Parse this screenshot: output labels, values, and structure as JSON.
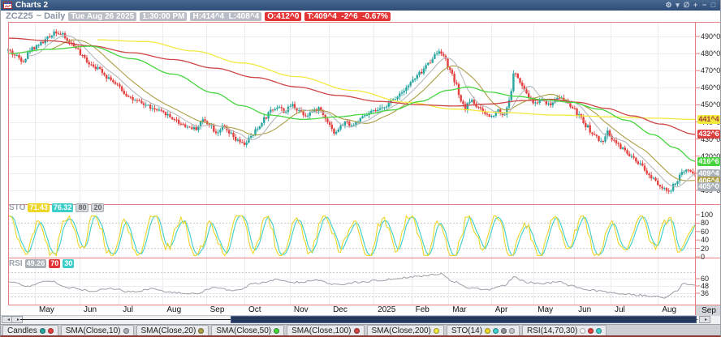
{
  "window": {
    "title": "Charts 2"
  },
  "icons": {
    "gear": "⚙",
    "dropdown": "▾",
    "draw": "∅",
    "pan": "+",
    "minimize": "−",
    "maximize": "□",
    "scroll_left": "◂",
    "scroll_right": "▸",
    "scroll_next": "▸"
  },
  "header": {
    "symbol": "ZCZ25",
    "timeframe": "~ Daily",
    "date": "Tue Aug 26 2025",
    "time": "1:30:00 PM",
    "high_low": "H:414^4  L:408^4",
    "open": "O:412^0",
    "last": "T:409^4  -2^6  -0.67%"
  },
  "price_axis": {
    "tick_labels": [
      "490^0",
      "480^0",
      "470^0",
      "460^0",
      "450^0",
      "440^0",
      "430^0",
      "420^0",
      "410^0",
      "400^0"
    ],
    "badges": [
      {
        "name": "sma200",
        "label": "441^4",
        "price": 441.5,
        "bg": "#f2e93e",
        "fg": "#a33c3c"
      },
      {
        "name": "sma100",
        "label": "432^6",
        "price": 432.75,
        "bg": "#d84040",
        "fg": "#ffffff"
      },
      {
        "name": "sma50",
        "label": "416^6",
        "price": 416.75,
        "bg": "#46d53e",
        "fg": "#ffffff"
      },
      {
        "name": "last-price",
        "label": "409^4",
        "price": 409.5,
        "bg": "#aab0b8",
        "fg": "#ffffff"
      },
      {
        "name": "sma20",
        "label": "406^4",
        "price": 406.5,
        "bg": "#ac9e44",
        "fg": "#ffffff"
      },
      {
        "name": "sma10",
        "label": "405^0",
        "price": 405.0,
        "bg": "#aab0b8",
        "fg": "#ffffff"
      }
    ]
  },
  "sto": {
    "label": "STO",
    "k": "71.43",
    "d": "76.32",
    "upper": "80",
    "lower": "20"
  },
  "rsi": {
    "label": "RSI",
    "value": "49.26",
    "upper": "70",
    "lower": "30"
  },
  "time_axis": {
    "corner": "Sep"
  },
  "legend": {
    "tabs": [
      {
        "label": "Candles",
        "dots": [
          "#27a5a0",
          "#e34040"
        ]
      },
      {
        "label": "SMA(Close,10)",
        "dots": [
          "#aab0b8"
        ]
      },
      {
        "label": "SMA(Close,20)",
        "dots": [
          "#ac9e44"
        ]
      },
      {
        "label": "SMA(Close,50)",
        "dots": [
          "#46d53e"
        ]
      },
      {
        "label": "SMA(Close,100)",
        "dots": [
          "#cf4545"
        ]
      },
      {
        "label": "SMA(Close,200)",
        "dots": [
          "#f2e93e"
        ]
      },
      {
        "label": "STO(14)",
        "dots": [
          "#edd628",
          "#3ccfca",
          "#8b8f94",
          "#c4c8cc"
        ]
      },
      {
        "label": "RSI(14,70,30)",
        "dots": [
          "#ffffff",
          "#e34040",
          "#3ccfca"
        ]
      }
    ]
  },
  "chart_data": {
    "type": "candlestick",
    "symbol": "ZCZ25",
    "interval": "Daily",
    "bars": 315,
    "ylim": [
      397,
      497
    ],
    "price_ticks": [
      490,
      480,
      470,
      460,
      450,
      440,
      430,
      420,
      410,
      400
    ],
    "up_color": "#27a5a0",
    "down_color": "#e34040",
    "last_close": 409.5,
    "months": [
      {
        "label": "May",
        "t": 0.039
      },
      {
        "label": "Jun",
        "t": 0.104
      },
      {
        "label": "Jul",
        "t": 0.161
      },
      {
        "label": "Aug",
        "t": 0.225
      },
      {
        "label": "Sep",
        "t": 0.288
      },
      {
        "label": "Oct",
        "t": 0.344
      },
      {
        "label": "Nov",
        "t": 0.41
      },
      {
        "label": "Dec",
        "t": 0.467
      },
      {
        "label": "2025",
        "t": 0.532
      },
      {
        "label": "Feb",
        "t": 0.587
      },
      {
        "label": "Mar",
        "t": 0.641
      },
      {
        "label": "Apr",
        "t": 0.703
      },
      {
        "label": "May",
        "t": 0.765
      },
      {
        "label": "Jun",
        "t": 0.824
      },
      {
        "label": "Jul",
        "t": 0.877
      },
      {
        "label": "Aug",
        "t": 0.946
      }
    ],
    "price_close_anchors": [
      [
        0.0,
        482
      ],
      [
        0.01,
        479
      ],
      [
        0.022,
        476
      ],
      [
        0.034,
        483
      ],
      [
        0.048,
        486
      ],
      [
        0.058,
        489
      ],
      [
        0.068,
        493
      ],
      [
        0.078,
        491
      ],
      [
        0.088,
        487
      ],
      [
        0.098,
        484
      ],
      [
        0.108,
        478
      ],
      [
        0.12,
        474
      ],
      [
        0.132,
        471
      ],
      [
        0.146,
        466
      ],
      [
        0.16,
        461
      ],
      [
        0.172,
        456
      ],
      [
        0.186,
        452
      ],
      [
        0.2,
        450
      ],
      [
        0.214,
        447
      ],
      [
        0.228,
        445
      ],
      [
        0.24,
        442
      ],
      [
        0.252,
        439
      ],
      [
        0.263,
        437
      ],
      [
        0.273,
        436
      ],
      [
        0.283,
        441
      ],
      [
        0.293,
        439
      ],
      [
        0.303,
        434
      ],
      [
        0.313,
        437
      ],
      [
        0.323,
        433
      ],
      [
        0.333,
        429
      ],
      [
        0.343,
        427
      ],
      [
        0.353,
        431
      ],
      [
        0.363,
        436
      ],
      [
        0.373,
        442
      ],
      [
        0.383,
        447
      ],
      [
        0.393,
        449
      ],
      [
        0.403,
        446
      ],
      [
        0.413,
        450
      ],
      [
        0.423,
        447
      ],
      [
        0.433,
        444
      ],
      [
        0.443,
        446
      ],
      [
        0.453,
        448
      ],
      [
        0.461,
        443
      ],
      [
        0.469,
        438
      ],
      [
        0.476,
        433
      ],
      [
        0.483,
        437
      ],
      [
        0.491,
        440
      ],
      [
        0.501,
        438
      ],
      [
        0.511,
        441
      ],
      [
        0.521,
        444
      ],
      [
        0.531,
        446
      ],
      [
        0.541,
        447
      ],
      [
        0.551,
        450
      ],
      [
        0.561,
        453
      ],
      [
        0.571,
        457
      ],
      [
        0.581,
        461
      ],
      [
        0.591,
        465
      ],
      [
        0.601,
        469
      ],
      [
        0.611,
        474
      ],
      [
        0.621,
        479
      ],
      [
        0.628,
        482
      ],
      [
        0.636,
        477
      ],
      [
        0.643,
        470
      ],
      [
        0.651,
        463
      ],
      [
        0.658,
        453
      ],
      [
        0.665,
        448
      ],
      [
        0.674,
        453
      ],
      [
        0.683,
        449
      ],
      [
        0.693,
        445
      ],
      [
        0.703,
        443
      ],
      [
        0.712,
        447
      ],
      [
        0.722,
        444
      ],
      [
        0.729,
        452
      ],
      [
        0.737,
        469
      ],
      [
        0.748,
        461
      ],
      [
        0.757,
        455
      ],
      [
        0.766,
        451
      ],
      [
        0.777,
        453
      ],
      [
        0.789,
        450
      ],
      [
        0.8,
        455
      ],
      [
        0.812,
        452
      ],
      [
        0.822,
        448
      ],
      [
        0.83,
        444
      ],
      [
        0.841,
        438
      ],
      [
        0.853,
        432
      ],
      [
        0.864,
        428
      ],
      [
        0.872,
        434
      ],
      [
        0.883,
        429
      ],
      [
        0.895,
        424
      ],
      [
        0.906,
        420
      ],
      [
        0.918,
        415
      ],
      [
        0.936,
        408
      ],
      [
        0.953,
        402
      ],
      [
        0.962,
        398.5
      ],
      [
        0.971,
        404
      ],
      [
        0.981,
        410
      ],
      [
        0.989,
        413
      ],
      [
        1.0,
        409.5
      ]
    ],
    "sma": {
      "sma10": {
        "window": 10,
        "color": "#b4b8bc",
        "last": 405.0
      },
      "sma20": {
        "window": 20,
        "color": "#ac9e44",
        "last": 406.5
      },
      "sma50": {
        "color": "#46d53e",
        "last": 416.75,
        "anchors": [
          [
            0,
            480
          ],
          [
            0.06,
            482.5
          ],
          [
            0.12,
            484.3
          ],
          [
            0.18,
            477
          ],
          [
            0.24,
            468
          ],
          [
            0.3,
            457
          ],
          [
            0.34,
            449.5
          ],
          [
            0.38,
            444
          ],
          [
            0.43,
            441.5
          ],
          [
            0.48,
            443
          ],
          [
            0.52,
            444.5
          ],
          [
            0.56,
            447
          ],
          [
            0.6,
            452
          ],
          [
            0.64,
            458.5
          ],
          [
            0.67,
            460.5
          ],
          [
            0.7,
            457.5
          ],
          [
            0.74,
            455
          ],
          [
            0.78,
            453
          ],
          [
            0.82,
            451.5
          ],
          [
            0.86,
            447.5
          ],
          [
            0.9,
            441
          ],
          [
            0.94,
            432.5
          ],
          [
            0.97,
            425
          ],
          [
            1.0,
            417
          ]
        ]
      },
      "sma100": {
        "color": "#cf4545",
        "last": 432.75,
        "anchors": [
          [
            0,
            489
          ],
          [
            0.06,
            487.5
          ],
          [
            0.12,
            484.5
          ],
          [
            0.18,
            480.5
          ],
          [
            0.24,
            476.5
          ],
          [
            0.3,
            471.5
          ],
          [
            0.36,
            466
          ],
          [
            0.42,
            460.5
          ],
          [
            0.48,
            455.5
          ],
          [
            0.54,
            452
          ],
          [
            0.6,
            450
          ],
          [
            0.65,
            449.3
          ],
          [
            0.7,
            450.5
          ],
          [
            0.75,
            452.5
          ],
          [
            0.79,
            453.3
          ],
          [
            0.83,
            451.5
          ],
          [
            0.87,
            448
          ],
          [
            0.91,
            443.5
          ],
          [
            0.95,
            438.8
          ],
          [
            1.0,
            432.8
          ]
        ]
      },
      "sma200": {
        "color": "#f2e93e",
        "last": 441.5,
        "anchors": [
          [
            0.13,
            488
          ],
          [
            0.2,
            487
          ],
          [
            0.27,
            481.5
          ],
          [
            0.34,
            474.5
          ],
          [
            0.42,
            466.5
          ],
          [
            0.5,
            458.5
          ],
          [
            0.58,
            451.5
          ],
          [
            0.65,
            447.5
          ],
          [
            0.72,
            445.5
          ],
          [
            0.8,
            444
          ],
          [
            0.88,
            443
          ],
          [
            0.94,
            442.2
          ],
          [
            1.0,
            441.5
          ]
        ]
      }
    },
    "sto_panel": {
      "range": [
        0,
        100
      ],
      "ticks": [
        100,
        80,
        60,
        40,
        20,
        0
      ],
      "thresholds": [
        80,
        20
      ],
      "k_last": 71.43,
      "d_last": 76.32,
      "k_color": "#edd628",
      "d_color": "#3ccfca"
    },
    "rsi_panel": {
      "ticks": [
        60,
        48,
        36
      ],
      "thresholds": [
        70,
        30
      ],
      "last": 49.26,
      "color": "#9aa0a6",
      "anchors": [
        [
          0,
          55
        ],
        [
          0.03,
          48
        ],
        [
          0.06,
          57
        ],
        [
          0.09,
          45
        ],
        [
          0.12,
          40
        ],
        [
          0.15,
          44
        ],
        [
          0.18,
          38
        ],
        [
          0.21,
          43
        ],
        [
          0.24,
          37
        ],
        [
          0.27,
          35
        ],
        [
          0.3,
          45
        ],
        [
          0.33,
          40
        ],
        [
          0.36,
          52
        ],
        [
          0.39,
          58
        ],
        [
          0.42,
          54
        ],
        [
          0.45,
          57
        ],
        [
          0.48,
          50
        ],
        [
          0.51,
          54
        ],
        [
          0.54,
          57
        ],
        [
          0.57,
          61
        ],
        [
          0.6,
          64
        ],
        [
          0.628,
          68
        ],
        [
          0.65,
          55
        ],
        [
          0.67,
          45
        ],
        [
          0.7,
          42
        ],
        [
          0.72,
          48
        ],
        [
          0.737,
          62
        ],
        [
          0.755,
          54
        ],
        [
          0.78,
          52
        ],
        [
          0.8,
          55
        ],
        [
          0.82,
          48
        ],
        [
          0.84,
          42
        ],
        [
          0.86,
          40
        ],
        [
          0.88,
          37
        ],
        [
          0.9,
          35
        ],
        [
          0.92,
          33
        ],
        [
          0.94,
          31
        ],
        [
          0.955,
          28
        ],
        [
          0.97,
          38
        ],
        [
          0.985,
          52
        ],
        [
          1.0,
          49.26
        ]
      ]
    }
  }
}
